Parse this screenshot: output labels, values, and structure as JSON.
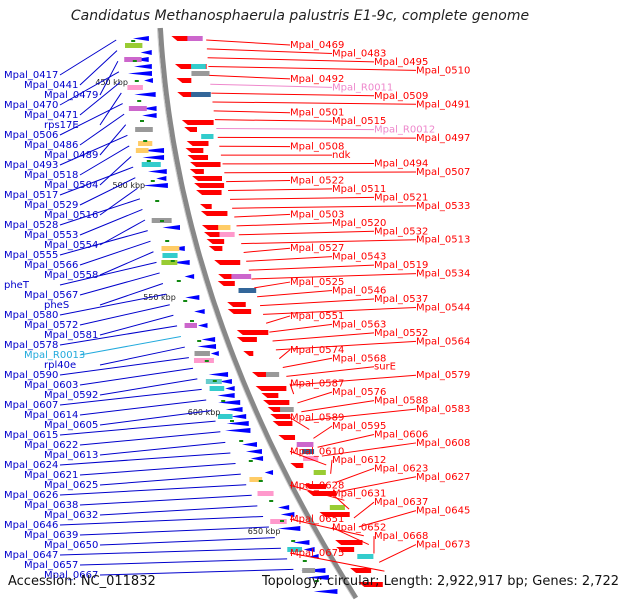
{
  "title": "Candidatus Methanosphaerula palustris E1-9c, complete genome",
  "footer": {
    "accession": "Accession: NC_011832",
    "summary": "Topology: circular; Length: 2,922,917 bp; Genes: 2,722"
  },
  "colors": {
    "backbone": "#888888",
    "forward_strand": "#ff0000",
    "reverse_strand": "#0000ff",
    "rna_forward": "#ff88cc",
    "rna_reverse": "#33bbee",
    "tick": "#118811"
  },
  "tick_labels": [
    "450 kbp",
    "500 kbp",
    "550 kbp",
    "600 kbp",
    "650 kbp"
  ],
  "left_labels": [
    {
      "text": "Mpal_0417",
      "color": "blue"
    },
    {
      "text": "Mpal_0441",
      "color": "blue"
    },
    {
      "text": "Mpal_0479",
      "color": "blue"
    },
    {
      "text": "Mpal_0470",
      "color": "blue"
    },
    {
      "text": "Mpal_0471",
      "color": "blue"
    },
    {
      "text": "rps17E",
      "color": "blue"
    },
    {
      "text": "Mpal_0506",
      "color": "blue"
    },
    {
      "text": "Mpal_0486",
      "color": "blue"
    },
    {
      "text": "Mpal_0489",
      "color": "blue"
    },
    {
      "text": "Mpal_0493",
      "color": "blue"
    },
    {
      "text": "Mpal_0518",
      "color": "blue"
    },
    {
      "text": "Mpal_0504",
      "color": "blue"
    },
    {
      "text": "Mpal_0517",
      "color": "blue"
    },
    {
      "text": "Mpal_0529",
      "color": "blue"
    },
    {
      "text": "Mpal_0516",
      "color": "blue"
    },
    {
      "text": "Mpal_0528",
      "color": "blue"
    },
    {
      "text": "Mpal_0553",
      "color": "blue"
    },
    {
      "text": "Mpal_0554",
      "color": "blue"
    },
    {
      "text": "Mpal_0555",
      "color": "blue"
    },
    {
      "text": "Mpal_0566",
      "color": "blue"
    },
    {
      "text": "Mpal_0558",
      "color": "blue"
    },
    {
      "text": "pheT",
      "color": "blue"
    },
    {
      "text": "Mpal_0567",
      "color": "blue"
    },
    {
      "text": "pheS",
      "color": "blue"
    },
    {
      "text": "Mpal_0580",
      "color": "blue"
    },
    {
      "text": "Mpal_0572",
      "color": "blue"
    },
    {
      "text": "Mpal_0581",
      "color": "blue"
    },
    {
      "text": "Mpal_0578",
      "color": "blue"
    },
    {
      "text": "Mpal_R0013",
      "color": "cyan"
    },
    {
      "text": "rpl40e",
      "color": "blue"
    },
    {
      "text": "Mpal_0590",
      "color": "blue"
    },
    {
      "text": "Mpal_0603",
      "color": "blue"
    },
    {
      "text": "Mpal_0592",
      "color": "blue"
    },
    {
      "text": "Mpal_0607",
      "color": "blue"
    },
    {
      "text": "Mpal_0614",
      "color": "blue"
    },
    {
      "text": "Mpal_0605",
      "color": "blue"
    },
    {
      "text": "Mpal_0615",
      "color": "blue"
    },
    {
      "text": "Mpal_0622",
      "color": "blue"
    },
    {
      "text": "Mpal_0613",
      "color": "blue"
    },
    {
      "text": "Mpal_0624",
      "color": "blue"
    },
    {
      "text": "Mpal_0621",
      "color": "blue"
    },
    {
      "text": "Mpal_0625",
      "color": "blue"
    },
    {
      "text": "Mpal_0626",
      "color": "blue"
    },
    {
      "text": "Mpal_0638",
      "color": "blue"
    },
    {
      "text": "Mpal_0632",
      "color": "blue"
    },
    {
      "text": "Mpal_0646",
      "color": "blue"
    },
    {
      "text": "Mpal_0639",
      "color": "blue"
    },
    {
      "text": "Mpal_0650",
      "color": "blue"
    },
    {
      "text": "Mpal_0647",
      "color": "blue"
    },
    {
      "text": "Mpal_0657",
      "color": "blue"
    },
    {
      "text": "Mpal_0667",
      "color": "blue"
    }
  ],
  "right_labels": [
    {
      "text": "Mpal_0469",
      "color": "red"
    },
    {
      "text": "Mpal_0483",
      "color": "red"
    },
    {
      "text": "Mpal_0495",
      "color": "red"
    },
    {
      "text": "Mpal_0510",
      "color": "red"
    },
    {
      "text": "Mpal_0492",
      "color": "red"
    },
    {
      "text": "Mpal_R0011",
      "color": "pink"
    },
    {
      "text": "Mpal_0509",
      "color": "red"
    },
    {
      "text": "Mpal_0491",
      "color": "red"
    },
    {
      "text": "Mpal_0501",
      "color": "red"
    },
    {
      "text": "Mpal_0515",
      "color": "red"
    },
    {
      "text": "Mpal_R0012",
      "color": "pink"
    },
    {
      "text": "Mpal_0497",
      "color": "red"
    },
    {
      "text": "Mpal_0508",
      "color": "red"
    },
    {
      "text": "ndk",
      "color": "red"
    },
    {
      "text": "Mpal_0494",
      "color": "red"
    },
    {
      "text": "Mpal_0507",
      "color": "red"
    },
    {
      "text": "Mpal_0522",
      "color": "red"
    },
    {
      "text": "Mpal_0511",
      "color": "red"
    },
    {
      "text": "Mpal_0521",
      "color": "red"
    },
    {
      "text": "Mpal_0533",
      "color": "red"
    },
    {
      "text": "Mpal_0503",
      "color": "red"
    },
    {
      "text": "Mpal_0520",
      "color": "red"
    },
    {
      "text": "Mpal_0532",
      "color": "red"
    },
    {
      "text": "Mpal_0513",
      "color": "red"
    },
    {
      "text": "Mpal_0527",
      "color": "red"
    },
    {
      "text": "Mpal_0543",
      "color": "red"
    },
    {
      "text": "Mpal_0519",
      "color": "red"
    },
    {
      "text": "Mpal_0534",
      "color": "red"
    },
    {
      "text": "Mpal_0525",
      "color": "red"
    },
    {
      "text": "Mpal_0546",
      "color": "red"
    },
    {
      "text": "Mpal_0537",
      "color": "red"
    },
    {
      "text": "Mpal_0544",
      "color": "red"
    },
    {
      "text": "Mpal_0551",
      "color": "red"
    },
    {
      "text": "Mpal_0563",
      "color": "red"
    },
    {
      "text": "Mpal_0552",
      "color": "red"
    },
    {
      "text": "Mpal_0564",
      "color": "red"
    },
    {
      "text": "Mpal_0574",
      "color": "red"
    },
    {
      "text": "Mpal_0568",
      "color": "red"
    },
    {
      "text": "surE",
      "color": "red"
    },
    {
      "text": "Mpal_0579",
      "color": "red"
    },
    {
      "text": "Mpal_0587",
      "color": "red"
    },
    {
      "text": "Mpal_0576",
      "color": "red"
    },
    {
      "text": "Mpal_0588",
      "color": "red"
    },
    {
      "text": "Mpal_0583",
      "color": "red"
    },
    {
      "text": "Mpal_0589",
      "color": "red"
    },
    {
      "text": "Mpal_0595",
      "color": "red"
    },
    {
      "text": "Mpal_0606",
      "color": "red"
    },
    {
      "text": "Mpal_0608",
      "color": "red"
    },
    {
      "text": "Mpal_0610",
      "color": "red"
    },
    {
      "text": "Mpal_0612",
      "color": "red"
    },
    {
      "text": "Mpal_0623",
      "color": "red"
    },
    {
      "text": "Mpal_0627",
      "color": "red"
    },
    {
      "text": "Mpal_0628",
      "color": "red"
    },
    {
      "text": "Mpal_0631",
      "color": "red"
    },
    {
      "text": "Mpal_0637",
      "color": "red"
    },
    {
      "text": "Mpal_0645",
      "color": "red"
    },
    {
      "text": "Mpal_0651",
      "color": "red"
    },
    {
      "text": "Mpal_0652",
      "color": "red"
    },
    {
      "text": "Mpal_0668",
      "color": "red"
    },
    {
      "text": "Mpal_0673",
      "color": "red"
    },
    {
      "text": "Mpal_0675",
      "color": "red"
    }
  ]
}
